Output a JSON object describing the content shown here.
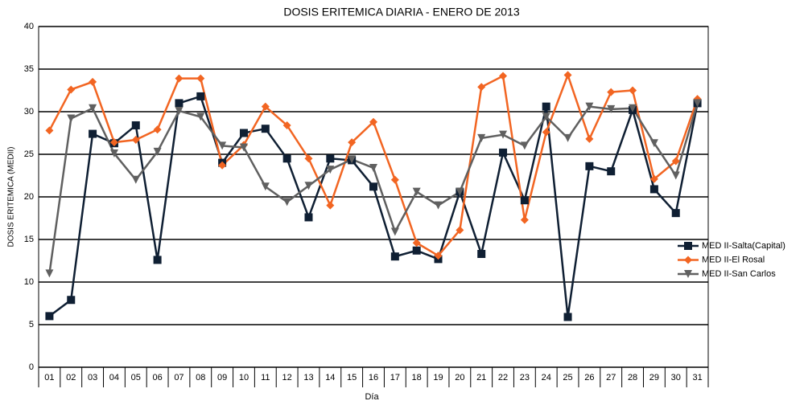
{
  "chart_data": {
    "type": "line",
    "title": "DOSIS ERITEMICA DIARIA - ENERO DE 2013",
    "x_label": "Día",
    "y_label": "DOSIS ERITEMICA (MEDII)",
    "categories": [
      "01",
      "02",
      "03",
      "04",
      "05",
      "06",
      "07",
      "08",
      "09",
      "10",
      "11",
      "12",
      "13",
      "14",
      "15",
      "16",
      "17",
      "18",
      "19",
      "20",
      "21",
      "22",
      "23",
      "24",
      "25",
      "26",
      "27",
      "28",
      "29",
      "30",
      "31"
    ],
    "series": [
      {
        "name": "MED II-Salta(Capital)",
        "color": "#0f1f33",
        "marker": "square",
        "values": [
          6,
          7.9,
          27.4,
          26.3,
          28.4,
          12.6,
          31,
          31.8,
          24,
          27.5,
          28,
          24.5,
          17.6,
          24.5,
          24.3,
          21.2,
          13,
          13.7,
          12.7,
          20.6,
          13.3,
          25.2,
          19.6,
          30.6,
          5.9,
          23.6,
          23,
          30.2,
          20.9,
          18.1,
          31
        ]
      },
      {
        "name": "MED II-El Rosal",
        "color": "#f26522",
        "marker": "diamond",
        "values": [
          27.8,
          32.6,
          33.5,
          26.4,
          26.7,
          27.9,
          33.9,
          33.9,
          23.7,
          26.1,
          30.6,
          28.4,
          24.5,
          19,
          26.4,
          28.8,
          22,
          14.6,
          13.1,
          16.1,
          32.9,
          34.2,
          17.3,
          27.6,
          34.3,
          26.8,
          32.3,
          32.5,
          22.1,
          24.2,
          31.5
        ]
      },
      {
        "name": "MED II-San Carlos",
        "color": "#606060",
        "marker": "triangle-down",
        "values": [
          11,
          29.2,
          30.4,
          25.1,
          22,
          25.3,
          30.1,
          29.4,
          26,
          25.8,
          21.2,
          19.4,
          21.3,
          23.2,
          24.4,
          23.4,
          15.9,
          20.6,
          19,
          20.6,
          26.9,
          27.3,
          26,
          29.4,
          26.9,
          30.6,
          30.3,
          30.4,
          26.3,
          22.5,
          31
        ]
      }
    ],
    "ylim": [
      0,
      40
    ],
    "yticks": [
      0,
      5,
      10,
      15,
      20,
      25,
      30,
      35,
      40
    ],
    "grid": true,
    "legend": "right"
  }
}
